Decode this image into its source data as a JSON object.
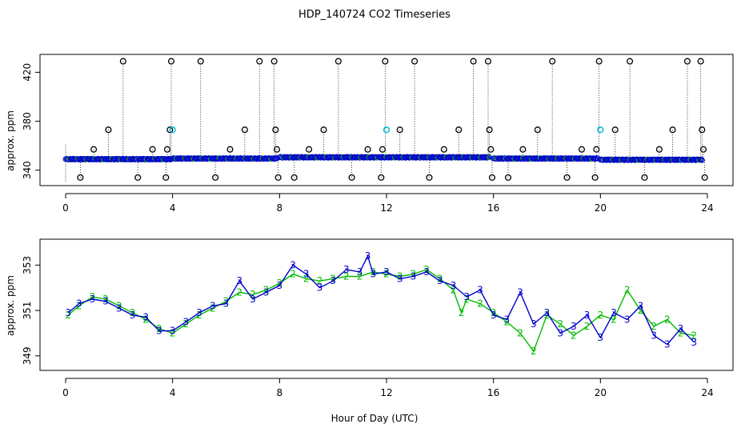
{
  "title": "HDP_140724  CO2 Timeseries",
  "xlabel": "Hour of Day (UTC)",
  "colors": {
    "series2": "#00bb00",
    "series3": "#0000cc",
    "cyan": "#00bcd4",
    "black": "#000000"
  },
  "chart_data": [
    {
      "type": "scatter",
      "name": "top-panel",
      "ylabel": "approx. ppm",
      "xlim": [
        0,
        24
      ],
      "ylim": [
        330,
        432
      ],
      "x_ticks": [
        "0",
        "4",
        "8",
        "12",
        "16",
        "20",
        "24"
      ],
      "y_ticks": [
        "340",
        "380",
        "420"
      ],
      "baseline_segments": [
        {
          "x": [
            0.0,
            3.95
          ],
          "y": 349
        },
        {
          "x": [
            4.0,
            7.9
          ],
          "y": 349.5
        },
        {
          "x": [
            8.0,
            15.85
          ],
          "y": 350.5
        },
        {
          "x": [
            16.0,
            19.9
          ],
          "y": 349.5
        },
        {
          "x": [
            20.0,
            23.8
          ],
          "y": 348.5
        }
      ],
      "outliers": [
        {
          "x": 0.55,
          "y": 334
        },
        {
          "x": 1.05,
          "y": 357
        },
        {
          "x": 1.6,
          "y": 373
        },
        {
          "x": 2.15,
          "y": 429
        },
        {
          "x": 2.7,
          "y": 334
        },
        {
          "x": 3.25,
          "y": 357
        },
        {
          "x": 3.75,
          "y": 334
        },
        {
          "x": 3.8,
          "y": 357
        },
        {
          "x": 3.9,
          "y": 373
        },
        {
          "x": 3.95,
          "y": 429
        },
        {
          "x": 5.05,
          "y": 429
        },
        {
          "x": 5.6,
          "y": 334
        },
        {
          "x": 6.15,
          "y": 357
        },
        {
          "x": 6.7,
          "y": 373
        },
        {
          "x": 7.25,
          "y": 429
        },
        {
          "x": 7.8,
          "y": 429
        },
        {
          "x": 7.85,
          "y": 373
        },
        {
          "x": 7.9,
          "y": 357
        },
        {
          "x": 7.95,
          "y": 334
        },
        {
          "x": 8.55,
          "y": 334
        },
        {
          "x": 9.1,
          "y": 357
        },
        {
          "x": 9.65,
          "y": 373
        },
        {
          "x": 10.2,
          "y": 429
        },
        {
          "x": 10.7,
          "y": 334
        },
        {
          "x": 11.3,
          "y": 357
        },
        {
          "x": 11.8,
          "y": 334
        },
        {
          "x": 11.85,
          "y": 357
        },
        {
          "x": 11.95,
          "y": 429
        },
        {
          "x": 12.5,
          "y": 373
        },
        {
          "x": 13.05,
          "y": 429
        },
        {
          "x": 13.6,
          "y": 334
        },
        {
          "x": 14.15,
          "y": 357
        },
        {
          "x": 14.7,
          "y": 373
        },
        {
          "x": 15.25,
          "y": 429
        },
        {
          "x": 15.8,
          "y": 429
        },
        {
          "x": 15.85,
          "y": 373
        },
        {
          "x": 15.9,
          "y": 357
        },
        {
          "x": 15.95,
          "y": 334
        },
        {
          "x": 16.55,
          "y": 334
        },
        {
          "x": 17.1,
          "y": 357
        },
        {
          "x": 17.65,
          "y": 373
        },
        {
          "x": 18.2,
          "y": 429
        },
        {
          "x": 18.75,
          "y": 334
        },
        {
          "x": 19.3,
          "y": 357
        },
        {
          "x": 19.8,
          "y": 334
        },
        {
          "x": 19.85,
          "y": 357
        },
        {
          "x": 19.95,
          "y": 429
        },
        {
          "x": 20.55,
          "y": 373
        },
        {
          "x": 21.1,
          "y": 429
        },
        {
          "x": 21.65,
          "y": 334
        },
        {
          "x": 22.2,
          "y": 357
        },
        {
          "x": 22.7,
          "y": 373
        },
        {
          "x": 23.25,
          "y": 429
        },
        {
          "x": 23.75,
          "y": 429
        },
        {
          "x": 23.8,
          "y": 373
        },
        {
          "x": 23.85,
          "y": 357
        },
        {
          "x": 23.9,
          "y": 334
        }
      ],
      "cyan_points": [
        {
          "x": 4.0,
          "y": 373
        },
        {
          "x": 12.0,
          "y": 373
        },
        {
          "x": 20.0,
          "y": 373
        }
      ]
    },
    {
      "type": "line",
      "name": "bottom-panel",
      "ylabel": "approx. ppm",
      "xlim": [
        0,
        24
      ],
      "ylim": [
        348.5,
        354
      ],
      "x_ticks": [
        "0",
        "4",
        "8",
        "12",
        "16",
        "20",
        "24"
      ],
      "y_ticks": [
        "349",
        "351",
        "353"
      ],
      "series": [
        {
          "name": "2",
          "color": "#00bb00",
          "x": [
            0.1,
            0.5,
            1.0,
            1.5,
            2.0,
            2.5,
            3.0,
            3.5,
            4.0,
            4.5,
            5.0,
            5.5,
            6.0,
            6.5,
            7.0,
            7.5,
            8.0,
            8.5,
            9.0,
            9.5,
            10.0,
            10.5,
            11.0,
            11.5,
            12.0,
            12.5,
            13.0,
            13.5,
            14.0,
            14.5,
            14.8,
            15.0,
            15.5,
            16.0,
            16.5,
            17.0,
            17.5,
            18.0,
            18.5,
            19.0,
            19.5,
            20.0,
            20.5,
            21.0,
            21.5,
            22.0,
            22.5,
            23.0,
            23.5
          ],
          "y": [
            350.8,
            351.2,
            351.6,
            351.5,
            351.2,
            350.9,
            350.6,
            350.2,
            350.0,
            350.4,
            350.8,
            351.1,
            351.4,
            351.8,
            351.7,
            351.9,
            352.2,
            352.6,
            352.4,
            352.3,
            352.4,
            352.5,
            352.5,
            352.7,
            352.6,
            352.5,
            352.6,
            352.8,
            352.4,
            351.9,
            350.9,
            351.5,
            351.3,
            350.9,
            350.5,
            350.0,
            349.2,
            350.8,
            350.4,
            349.9,
            350.3,
            350.8,
            350.6,
            351.9,
            351.0,
            350.3,
            350.6,
            350.0,
            349.9
          ]
        },
        {
          "name": "3",
          "color": "#0000cc",
          "x": [
            0.1,
            0.5,
            1.0,
            1.5,
            2.0,
            2.5,
            3.0,
            3.5,
            4.0,
            4.5,
            5.0,
            5.5,
            6.0,
            6.5,
            7.0,
            7.5,
            8.0,
            8.5,
            9.0,
            9.5,
            10.0,
            10.5,
            11.0,
            11.3,
            11.5,
            12.0,
            12.5,
            13.0,
            13.5,
            14.0,
            14.5,
            15.0,
            15.5,
            16.0,
            16.5,
            17.0,
            17.5,
            18.0,
            18.5,
            19.0,
            19.5,
            20.0,
            20.5,
            21.0,
            21.5,
            22.0,
            22.5,
            23.0,
            23.5
          ],
          "y": [
            350.9,
            351.3,
            351.5,
            351.4,
            351.1,
            350.8,
            350.7,
            350.1,
            350.1,
            350.5,
            350.9,
            351.2,
            351.3,
            352.3,
            351.5,
            351.8,
            352.1,
            353.0,
            352.6,
            352.0,
            352.3,
            352.8,
            352.7,
            353.4,
            352.6,
            352.7,
            352.4,
            352.5,
            352.7,
            352.3,
            352.1,
            351.6,
            351.9,
            350.8,
            350.6,
            351.8,
            350.4,
            350.9,
            350.0,
            350.3,
            350.8,
            349.8,
            350.9,
            350.6,
            351.2,
            349.9,
            349.5,
            350.2,
            349.6
          ]
        }
      ]
    }
  ]
}
